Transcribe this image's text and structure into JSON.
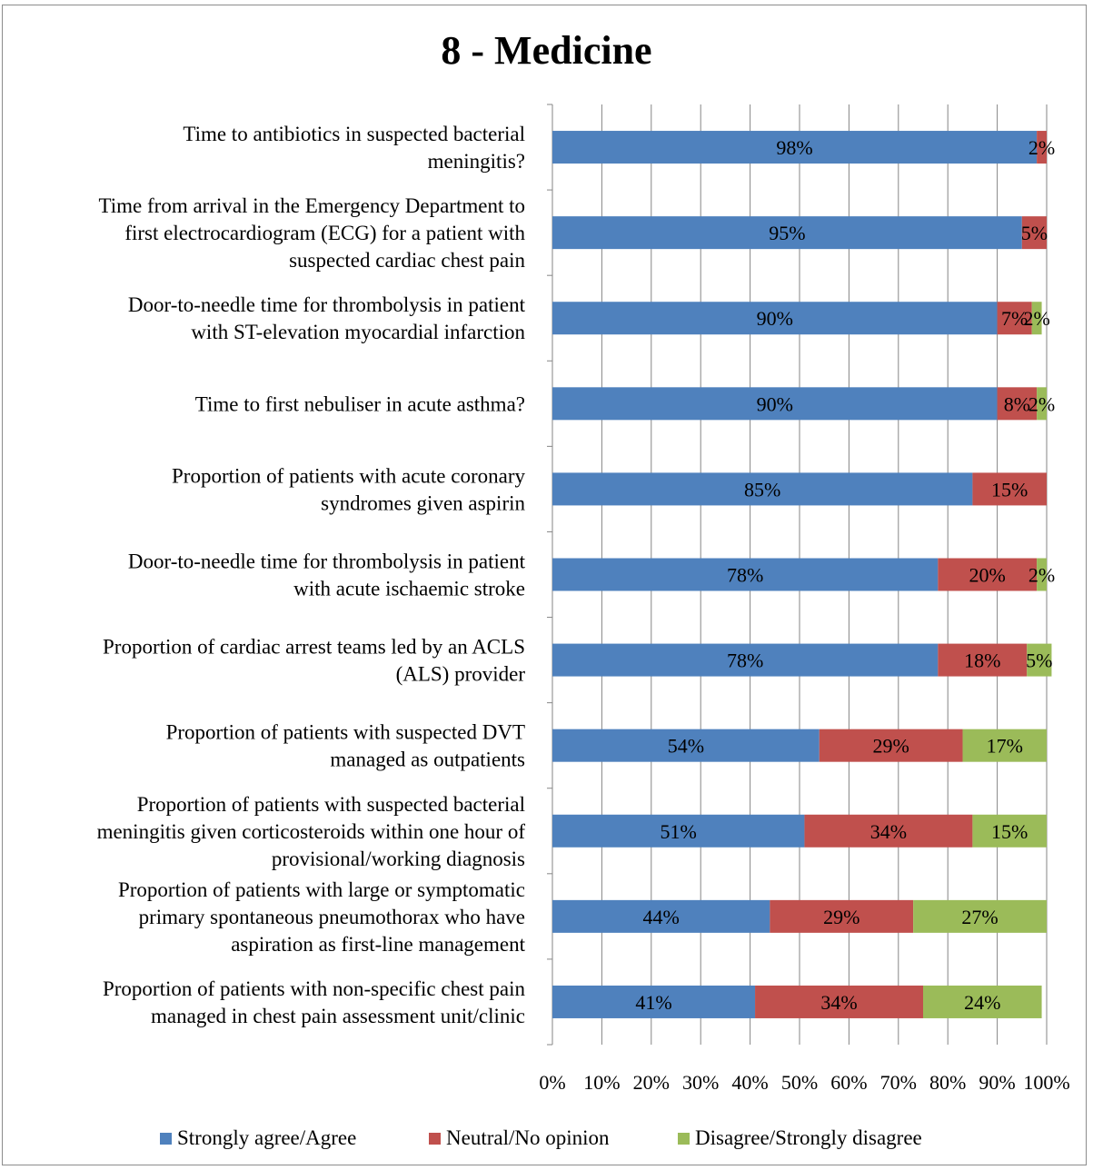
{
  "title": "8 - Medicine",
  "colors": {
    "strongly_agree": "#4F81BD",
    "neutral": "#C0504D",
    "disagree": "#9BBB59",
    "gridline": "#868686"
  },
  "legend": [
    {
      "label": "Strongly agree/Agree",
      "color": "#4F81BD"
    },
    {
      "label": "Neutral/No opinion",
      "color": "#C0504D"
    },
    {
      "label": "Disagree/Strongly disagree",
      "color": "#9BBB59"
    }
  ],
  "chart_data": {
    "type": "bar",
    "orientation": "horizontal",
    "stacked": "percent",
    "title": "8 - Medicine",
    "xlim": [
      0,
      100
    ],
    "x_ticks": [
      "0%",
      "10%",
      "20%",
      "30%",
      "40%",
      "50%",
      "60%",
      "70%",
      "80%",
      "90%",
      "100%"
    ],
    "grid": true,
    "legend_position": "bottom",
    "categories": [
      [
        "Time to antibiotics in suspected bacterial",
        "meningitis?"
      ],
      [
        "Time from arrival in the Emergency Department to",
        "first electrocardiogram (ECG) for a patient with",
        "suspected cardiac chest pain"
      ],
      [
        "Door-to-needle time for thrombolysis in patient",
        "with ST-elevation myocardial infarction"
      ],
      [
        "Time to first nebuliser in acute asthma?"
      ],
      [
        "Proportion of patients with acute coronary",
        "syndromes given aspirin"
      ],
      [
        "Door-to-needle time for thrombolysis in patient",
        "with acute ischaemic stroke"
      ],
      [
        "Proportion of cardiac arrest teams led by an ACLS",
        "(ALS) provider"
      ],
      [
        "Proportion of patients with suspected DVT",
        "managed as outpatients"
      ],
      [
        "Proportion of patients with suspected bacterial",
        "meningitis given corticosteroids within one hour of",
        "provisional/working diagnosis"
      ],
      [
        "Proportion of patients with large or symptomatic",
        "primary spontaneous pneumothorax who have",
        "aspiration as first-line management"
      ],
      [
        "Proportion of patients with non-specific chest pain",
        "managed in chest pain assessment unit/clinic"
      ]
    ],
    "series": [
      {
        "name": "Strongly agree/Agree",
        "color": "#4F81BD",
        "values": [
          98,
          95,
          90,
          90,
          85,
          78,
          78,
          54,
          51,
          44,
          41
        ],
        "labels": [
          "98%",
          "95%",
          "90%",
          "90%",
          "85%",
          "78%",
          "78%",
          "54%",
          "51%",
          "44%",
          "41%"
        ]
      },
      {
        "name": "Neutral/No opinion",
        "color": "#C0504D",
        "values": [
          2,
          5,
          7,
          8,
          15,
          20,
          18,
          29,
          34,
          29,
          34
        ],
        "labels": [
          "2%",
          "5%",
          "7%",
          "8%",
          "15%",
          "20%",
          "18%",
          "29%",
          "34%",
          "29%",
          "34%"
        ]
      },
      {
        "name": "Disagree/Strongly disagree",
        "color": "#9BBB59",
        "values": [
          0,
          0,
          2,
          2,
          0,
          2,
          5,
          17,
          15,
          27,
          24
        ],
        "labels": [
          "",
          "",
          "2%",
          "2%",
          "",
          "2%",
          "5%",
          "17%",
          "15%",
          "27%",
          "24%"
        ]
      }
    ]
  }
}
